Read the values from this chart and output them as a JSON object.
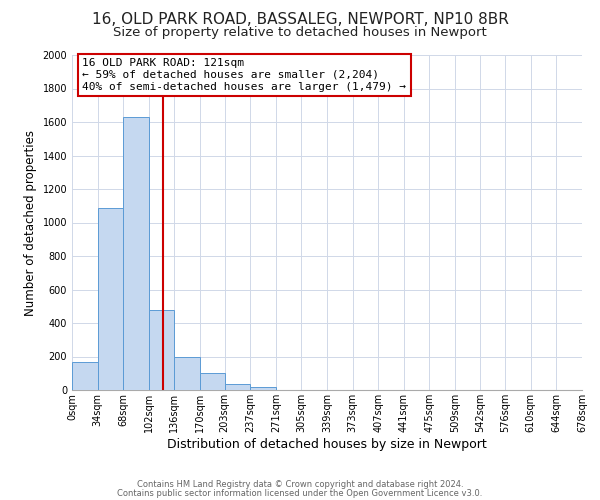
{
  "title_line1": "16, OLD PARK ROAD, BASSALEG, NEWPORT, NP10 8BR",
  "title_line2": "Size of property relative to detached houses in Newport",
  "xlabel": "Distribution of detached houses by size in Newport",
  "ylabel": "Number of detached properties",
  "bar_edges": [
    0,
    34,
    68,
    102,
    136,
    170,
    203,
    237,
    271,
    305,
    339,
    373,
    407,
    441,
    475,
    509,
    542,
    576,
    610,
    644,
    678
  ],
  "bar_heights": [
    170,
    1085,
    1630,
    480,
    200,
    100,
    35,
    15,
    0,
    0,
    0,
    0,
    0,
    0,
    0,
    0,
    0,
    0,
    0,
    0
  ],
  "bar_color": "#c5d8f0",
  "bar_edge_color": "#5b9bd5",
  "red_line_x": 121,
  "ylim": [
    0,
    2000
  ],
  "yticks": [
    0,
    200,
    400,
    600,
    800,
    1000,
    1200,
    1400,
    1600,
    1800,
    2000
  ],
  "xtick_labels": [
    "0sqm",
    "34sqm",
    "68sqm",
    "102sqm",
    "136sqm",
    "170sqm",
    "203sqm",
    "237sqm",
    "271sqm",
    "305sqm",
    "339sqm",
    "373sqm",
    "407sqm",
    "441sqm",
    "475sqm",
    "509sqm",
    "542sqm",
    "576sqm",
    "610sqm",
    "644sqm",
    "678sqm"
  ],
  "annotation_title": "16 OLD PARK ROAD: 121sqm",
  "annotation_line1": "← 59% of detached houses are smaller (2,204)",
  "annotation_line2": "40% of semi-detached houses are larger (1,479) →",
  "footer_line1": "Contains HM Land Registry data © Crown copyright and database right 2024.",
  "footer_line2": "Contains public sector information licensed under the Open Government Licence v3.0.",
  "bg_color": "#ffffff",
  "grid_color": "#d0d8e8",
  "title_fontsize": 11,
  "subtitle_fontsize": 9.5,
  "xlabel_fontsize": 9,
  "ylabel_fontsize": 8.5,
  "tick_fontsize": 7,
  "annotation_fontsize": 8,
  "footer_fontsize": 6,
  "annotation_box_color": "#ffffff",
  "annotation_box_edge": "#cc0000"
}
